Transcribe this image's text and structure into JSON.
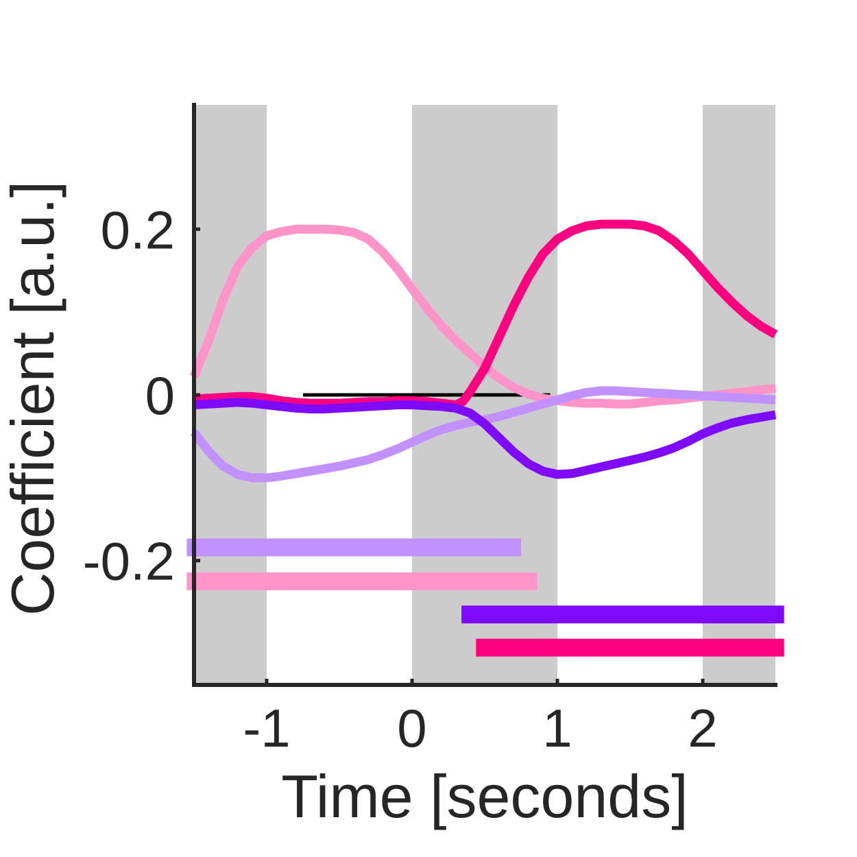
{
  "chart_data": {
    "type": "line",
    "title": "",
    "xlabel": "Time [seconds]",
    "ylabel": "Coefficient [a.u.]",
    "xlim": [
      -1.5,
      2.5
    ],
    "ylim": [
      -0.35,
      0.35
    ],
    "xticks": [
      -1,
      0,
      1,
      2
    ],
    "xtick_labels": [
      "-1",
      "0",
      "1",
      "2"
    ],
    "yticks": [
      0.2,
      0,
      -0.2
    ],
    "ytick_labels": [
      "0.2",
      "0",
      "-0.2"
    ],
    "grid": false,
    "legend": "none",
    "shaded_intervals": [
      [
        -1.5,
        -1.0
      ],
      [
        0.0,
        1.0
      ],
      [
        2.0,
        2.5
      ]
    ],
    "shade_color": "#cccccc",
    "zero_line": {
      "y": 0,
      "x_range": [
        -0.75,
        0.95
      ],
      "color": "#000000"
    },
    "series": [
      {
        "color": "#ff94c8",
        "x": [
          -1.5,
          -1.4,
          -1.3,
          -1.2,
          -1.1,
          -1.0,
          -0.9,
          -0.8,
          -0.7,
          -0.6,
          -0.5,
          -0.4,
          -0.3,
          -0.2,
          -0.1,
          0.0,
          0.1,
          0.2,
          0.3,
          0.4,
          0.5,
          0.6,
          0.7,
          0.8,
          0.9,
          1.0,
          1.1,
          1.2,
          1.3,
          1.4,
          1.5,
          1.6,
          1.7,
          1.8,
          1.9,
          2.0,
          2.1,
          2.2,
          2.3,
          2.4,
          2.5
        ],
        "y": [
          0.022,
          0.065,
          0.115,
          0.155,
          0.178,
          0.192,
          0.197,
          0.2,
          0.2,
          0.2,
          0.199,
          0.196,
          0.188,
          0.172,
          0.152,
          0.128,
          0.105,
          0.084,
          0.066,
          0.05,
          0.034,
          0.02,
          0.009,
          0.001,
          -0.004,
          -0.007,
          -0.009,
          -0.01,
          -0.01,
          -0.011,
          -0.011,
          -0.009,
          -0.007,
          -0.006,
          -0.004,
          -0.002,
          0.0,
          0.002,
          0.004,
          0.006,
          0.008
        ]
      },
      {
        "color": "#ff0080",
        "x": [
          -1.5,
          -1.4,
          -1.3,
          -1.2,
          -1.1,
          -1.0,
          -0.9,
          -0.8,
          -0.7,
          -0.6,
          -0.5,
          -0.4,
          -0.3,
          -0.2,
          -0.1,
          0.0,
          0.1,
          0.2,
          0.3,
          0.35,
          0.4,
          0.5,
          0.6,
          0.7,
          0.8,
          0.9,
          1.0,
          1.1,
          1.2,
          1.3,
          1.4,
          1.5,
          1.6,
          1.7,
          1.8,
          1.9,
          2.0,
          2.1,
          2.2,
          2.3,
          2.4,
          2.5
        ],
        "y": [
          -0.005,
          -0.004,
          -0.003,
          -0.002,
          -0.002,
          -0.004,
          -0.007,
          -0.009,
          -0.01,
          -0.01,
          -0.01,
          -0.009,
          -0.008,
          -0.008,
          -0.007,
          -0.007,
          -0.008,
          -0.01,
          -0.012,
          -0.008,
          0.004,
          0.032,
          0.07,
          0.108,
          0.142,
          0.17,
          0.188,
          0.198,
          0.204,
          0.206,
          0.206,
          0.206,
          0.204,
          0.198,
          0.186,
          0.17,
          0.15,
          0.13,
          0.112,
          0.096,
          0.083,
          0.073
        ]
      },
      {
        "color": "#c191ff",
        "x": [
          -1.5,
          -1.4,
          -1.3,
          -1.2,
          -1.1,
          -1.0,
          -0.9,
          -0.8,
          -0.7,
          -0.6,
          -0.5,
          -0.4,
          -0.3,
          -0.2,
          -0.1,
          0.0,
          0.1,
          0.2,
          0.3,
          0.4,
          0.5,
          0.6,
          0.7,
          0.8,
          0.9,
          1.0,
          1.1,
          1.2,
          1.3,
          1.4,
          1.5,
          1.6,
          1.7,
          1.8,
          1.9,
          2.0,
          2.1,
          2.2,
          2.3,
          2.4,
          2.5
        ],
        "y": [
          -0.045,
          -0.068,
          -0.086,
          -0.096,
          -0.1,
          -0.1,
          -0.098,
          -0.095,
          -0.092,
          -0.089,
          -0.086,
          -0.082,
          -0.078,
          -0.072,
          -0.065,
          -0.057,
          -0.049,
          -0.042,
          -0.037,
          -0.033,
          -0.03,
          -0.026,
          -0.021,
          -0.016,
          -0.011,
          -0.006,
          -0.001,
          0.003,
          0.005,
          0.005,
          0.004,
          0.003,
          0.002,
          0.001,
          0.0,
          -0.001,
          -0.002,
          -0.003,
          -0.004,
          -0.005,
          -0.006
        ]
      },
      {
        "color": "#7f0bff",
        "x": [
          -1.5,
          -1.4,
          -1.3,
          -1.2,
          -1.1,
          -1.0,
          -0.9,
          -0.8,
          -0.7,
          -0.6,
          -0.5,
          -0.4,
          -0.3,
          -0.2,
          -0.1,
          0.0,
          0.1,
          0.2,
          0.3,
          0.4,
          0.5,
          0.6,
          0.7,
          0.8,
          0.9,
          1.0,
          1.1,
          1.2,
          1.3,
          1.4,
          1.5,
          1.6,
          1.7,
          1.8,
          1.9,
          2.0,
          2.1,
          2.2,
          2.3,
          2.4,
          2.5
        ],
        "y": [
          -0.012,
          -0.011,
          -0.01,
          -0.009,
          -0.01,
          -0.012,
          -0.014,
          -0.016,
          -0.017,
          -0.017,
          -0.016,
          -0.015,
          -0.014,
          -0.013,
          -0.012,
          -0.012,
          -0.013,
          -0.014,
          -0.016,
          -0.022,
          -0.035,
          -0.052,
          -0.069,
          -0.083,
          -0.092,
          -0.096,
          -0.095,
          -0.091,
          -0.087,
          -0.083,
          -0.079,
          -0.075,
          -0.07,
          -0.064,
          -0.056,
          -0.047,
          -0.04,
          -0.034,
          -0.03,
          -0.027,
          -0.024
        ]
      }
    ],
    "significance_bars": [
      {
        "color": "#c191ff",
        "y": -0.184,
        "x_range": [
          -1.55,
          0.75
        ]
      },
      {
        "color": "#ff94c8",
        "y": -0.225,
        "x_range": [
          -1.55,
          0.86
        ]
      },
      {
        "color": "#7f0bff",
        "y": -0.265,
        "x_range": [
          0.34,
          2.56
        ]
      },
      {
        "color": "#ff0080",
        "y": -0.305,
        "x_range": [
          0.44,
          2.56
        ]
      }
    ]
  }
}
